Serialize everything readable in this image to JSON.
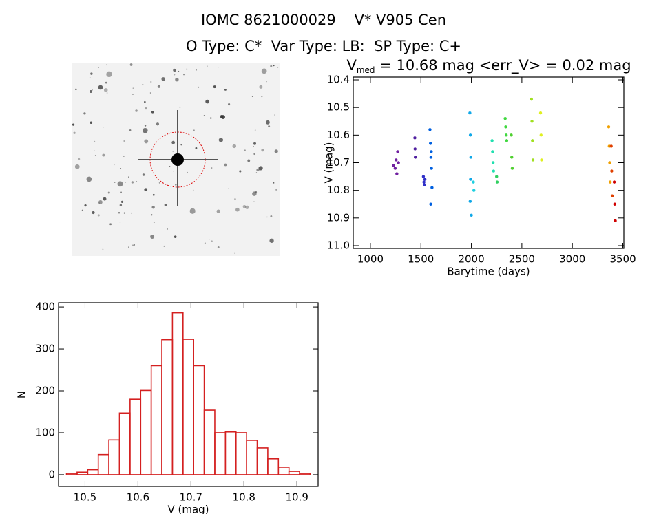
{
  "header": {
    "title": "IOMC 8621000029    V* V905 Cen",
    "subtitle": "O Type: C*  Var Type: LB:  SP Type: C+"
  },
  "chart_data": [
    {
      "type": "scatter",
      "title": "V",
      "title_sub": "med",
      "title_rest": " = 10.68 mag <err_V> = 0.02 mag",
      "x_label": "Barytime (days)",
      "y_label": "V (mag)",
      "xlim": [
        830,
        3510
      ],
      "xticks": [
        1000,
        1500,
        2000,
        2500,
        3000,
        3500
      ],
      "ylim": [
        11.01,
        10.39
      ],
      "yticks": [
        10.4,
        10.5,
        10.6,
        10.7,
        10.8,
        10.9,
        {
          "value": 11,
          "label": "11.0"
        }
      ],
      "series": [
        {
          "color": "#7020a0",
          "x": [
            1230,
            1245,
            1255,
            1262,
            1270,
            1278
          ],
          "y": [
            10.71,
            10.72,
            10.69,
            10.74,
            10.66,
            10.7
          ]
        },
        {
          "color": "#5020a0",
          "x": [
            1440,
            1442,
            1445
          ],
          "y": [
            10.61,
            10.65,
            10.68
          ]
        },
        {
          "color": "#3030c8",
          "x": [
            1525,
            1530,
            1535,
            1540
          ],
          "y": [
            10.75,
            10.77,
            10.78,
            10.76
          ]
        },
        {
          "color": "#0060e0",
          "x": [
            1590,
            1595,
            1600,
            1605,
            1610,
            1598,
            1603
          ],
          "y": [
            10.58,
            10.63,
            10.68,
            10.72,
            10.79,
            10.85,
            10.66
          ]
        },
        {
          "color": "#10a8e8",
          "x": [
            1985,
            1990,
            1995,
            1992,
            1988,
            2000
          ],
          "y": [
            10.52,
            10.6,
            10.68,
            10.76,
            10.84,
            10.89
          ]
        },
        {
          "color": "#20d0e0",
          "x": [
            2020,
            2025
          ],
          "y": [
            10.77,
            10.8
          ]
        },
        {
          "color": "#20e0b0",
          "x": [
            2205,
            2210,
            2215,
            2220
          ],
          "y": [
            10.62,
            10.66,
            10.7,
            10.73
          ]
        },
        {
          "color": "#30d060",
          "x": [
            2250,
            2255
          ],
          "y": [
            10.75,
            10.77
          ]
        },
        {
          "color": "#40d840",
          "x": [
            2335,
            2340,
            2345,
            2350
          ],
          "y": [
            10.54,
            10.57,
            10.6,
            10.62
          ]
        },
        {
          "color": "#50d030",
          "x": [
            2395,
            2400,
            2405
          ],
          "y": [
            10.6,
            10.68,
            10.72
          ]
        },
        {
          "color": "#a0e020",
          "x": [
            2595,
            2600,
            2605,
            2610
          ],
          "y": [
            10.47,
            10.55,
            10.62,
            10.69
          ]
        },
        {
          "color": "#e0f020",
          "x": [
            2685,
            2690,
            2695
          ],
          "y": [
            10.52,
            10.6,
            10.69
          ]
        },
        {
          "color": "#f0a000",
          "x": [
            3360,
            3365,
            3370,
            3375
          ],
          "y": [
            10.57,
            10.64,
            10.7,
            10.77
          ]
        },
        {
          "color": "#e04000",
          "x": [
            3385,
            3390,
            3395
          ],
          "y": [
            10.64,
            10.73,
            10.82
          ]
        },
        {
          "color": "#d00000",
          "x": [
            3415,
            3420,
            3425
          ],
          "y": [
            10.77,
            10.85,
            10.91
          ]
        }
      ]
    },
    {
      "type": "histogram",
      "x_label": "V (mag)",
      "y_label": "N",
      "color": "#d42020",
      "bins": [
        10.465,
        10.485,
        10.505,
        10.525,
        10.545,
        10.565,
        10.585,
        10.605,
        10.625,
        10.645,
        10.665,
        10.685,
        10.705,
        10.725,
        10.745,
        10.765,
        10.785,
        10.805,
        10.825,
        10.845,
        10.865,
        10.885,
        10.905,
        10.925
      ],
      "values": [
        3,
        6,
        12,
        48,
        83,
        147,
        180,
        201,
        260,
        322,
        386,
        323,
        260,
        154,
        100,
        102,
        100,
        82,
        64,
        38,
        18,
        8,
        3
      ],
      "xlim": [
        10.45,
        10.94
      ],
      "xticks": [
        10.5,
        10.6,
        10.7,
        10.8,
        10.9
      ],
      "ylim": [
        -28,
        410
      ],
      "yticks": [
        0,
        100,
        200,
        300,
        400
      ]
    }
  ]
}
